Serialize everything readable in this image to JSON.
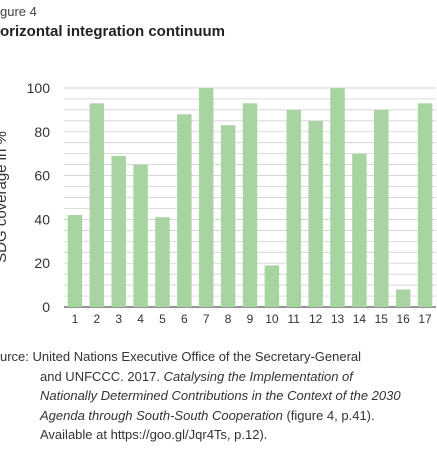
{
  "figure_label": "gure 4",
  "figure_title": "orizontal integration continuum",
  "chart_data": {
    "type": "bar",
    "categories": [
      "1",
      "2",
      "3",
      "4",
      "5",
      "6",
      "7",
      "8",
      "9",
      "10",
      "11",
      "12",
      "13",
      "14",
      "15",
      "16",
      "17"
    ],
    "values": [
      42,
      93,
      69,
      65,
      41,
      88,
      100,
      83,
      93,
      19,
      90,
      85,
      100,
      70,
      90,
      8,
      93
    ],
    "title": "orizontal integration continuum",
    "xlabel": "",
    "ylabel": "SDG coverage in %",
    "ylim": [
      0,
      100
    ],
    "yticks": [
      0,
      20,
      40,
      60,
      80,
      100
    ],
    "bar_color": "#a8d4a2",
    "grid": true
  },
  "source": {
    "line1": "urce: United Nations Executive Office of the Secretary-General",
    "line2": "and UNFCCC. 2017. ",
    "line2_italic": "Catalysing the Implementation of",
    "line3_italic": "Nationally Determined Contributions in the Context of the 2030",
    "line4_italic": "Agenda through South-South Cooperation",
    "line4_rest": " (figure 4, p.41).",
    "line5": "Available at https://goo.gl/Jqr4Ts, p.12)."
  }
}
